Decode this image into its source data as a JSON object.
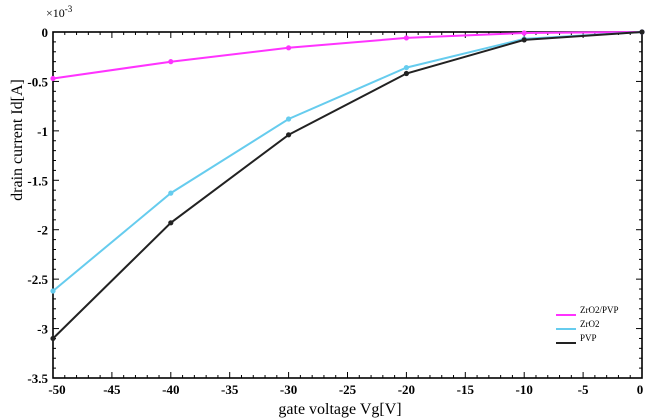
{
  "chart_data": {
    "type": "line",
    "xlabel": "gate voltage  Vg[V]",
    "ylabel": "drain current  Id[A]",
    "y_exponent_label": "×10",
    "y_exponent_power": "-3",
    "xlim": [
      -50,
      0
    ],
    "ylim": [
      -3.5,
      0
    ],
    "y_scale_factor": 0.001,
    "x_ticks": [
      -50,
      -45,
      -40,
      -35,
      -30,
      -25,
      -20,
      -15,
      -10,
      -5,
      0
    ],
    "x_tick_labels": [
      "-50",
      "-45",
      "-40",
      "-35",
      "-30",
      "-25",
      "-20",
      "-15",
      "-10",
      "-5",
      "0"
    ],
    "y_ticks": [
      0,
      -0.5,
      -1,
      -1.5,
      -2,
      -2.5,
      -3,
      -3.5
    ],
    "y_tick_labels": [
      "0",
      "-0.5",
      "-1",
      "-1.5",
      "-2",
      "-2.5",
      "-3",
      "-3.5"
    ],
    "grid": false,
    "legend_position": "bottom-right",
    "series": [
      {
        "name": "ZrO2/PVP",
        "color": "#ff33ff",
        "x": [
          -50,
          -40,
          -30,
          -20,
          -10,
          0
        ],
        "y": [
          -0.47,
          -0.3,
          -0.16,
          -0.06,
          -0.01,
          0
        ]
      },
      {
        "name": "ZrO2",
        "color": "#66ccee",
        "x": [
          -50,
          -40,
          -30,
          -20,
          -10,
          0
        ],
        "y": [
          -2.62,
          -1.63,
          -0.88,
          -0.36,
          -0.07,
          0
        ]
      },
      {
        "name": "PVP",
        "color": "#222222",
        "x": [
          -50,
          -40,
          -30,
          -20,
          -10,
          0
        ],
        "y": [
          -3.1,
          -1.93,
          -1.04,
          -0.42,
          -0.08,
          0
        ]
      }
    ]
  }
}
